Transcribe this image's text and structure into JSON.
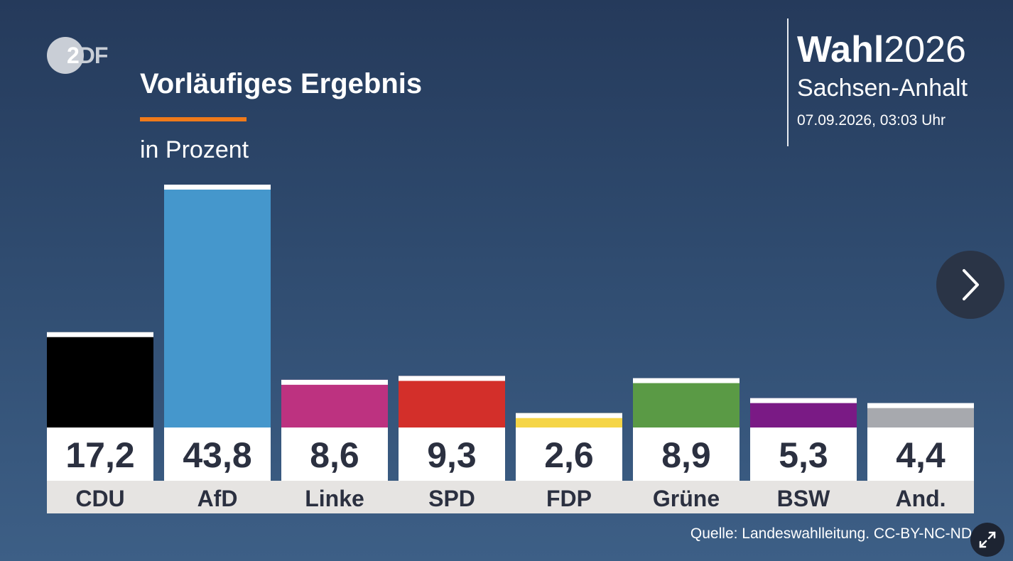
{
  "logo": {
    "text_first": "2",
    "text_rest": "DF"
  },
  "header": {
    "title": "Vorläufiges Ergebnis",
    "subtitle": "in Prozent"
  },
  "brand": {
    "word_bold": "Wahl",
    "word_year": "2026",
    "region": "Sachsen-Anhalt",
    "datetime": "07.09.2026, 03:03 Uhr"
  },
  "source": "Quelle: Landeswahlleitung. CC-BY-NC-ND",
  "controls": {
    "next_icon": "chevron-right-icon",
    "fullscreen_icon": "expand-icon"
  },
  "chart_data": {
    "type": "bar",
    "title": "Vorläufiges Ergebnis",
    "subtitle": "in Prozent",
    "categories": [
      "CDU",
      "AfD",
      "Linke",
      "SPD",
      "FDP",
      "Grüne",
      "BSW",
      "And."
    ],
    "values": [
      17.2,
      43.8,
      8.6,
      9.3,
      2.6,
      8.9,
      5.3,
      4.4
    ],
    "value_labels": [
      "17,2",
      "43,8",
      "8,6",
      "9,3",
      "2,6",
      "8,9",
      "5,3",
      "4,4"
    ],
    "colors": [
      "#000000",
      "#4597cc",
      "#bd3280",
      "#d32f2a",
      "#f5d547",
      "#5a9a45",
      "#7a1a85",
      "#a7a9ae"
    ],
    "ylim": [
      0,
      43.8
    ],
    "grid": false,
    "legend": "none"
  }
}
